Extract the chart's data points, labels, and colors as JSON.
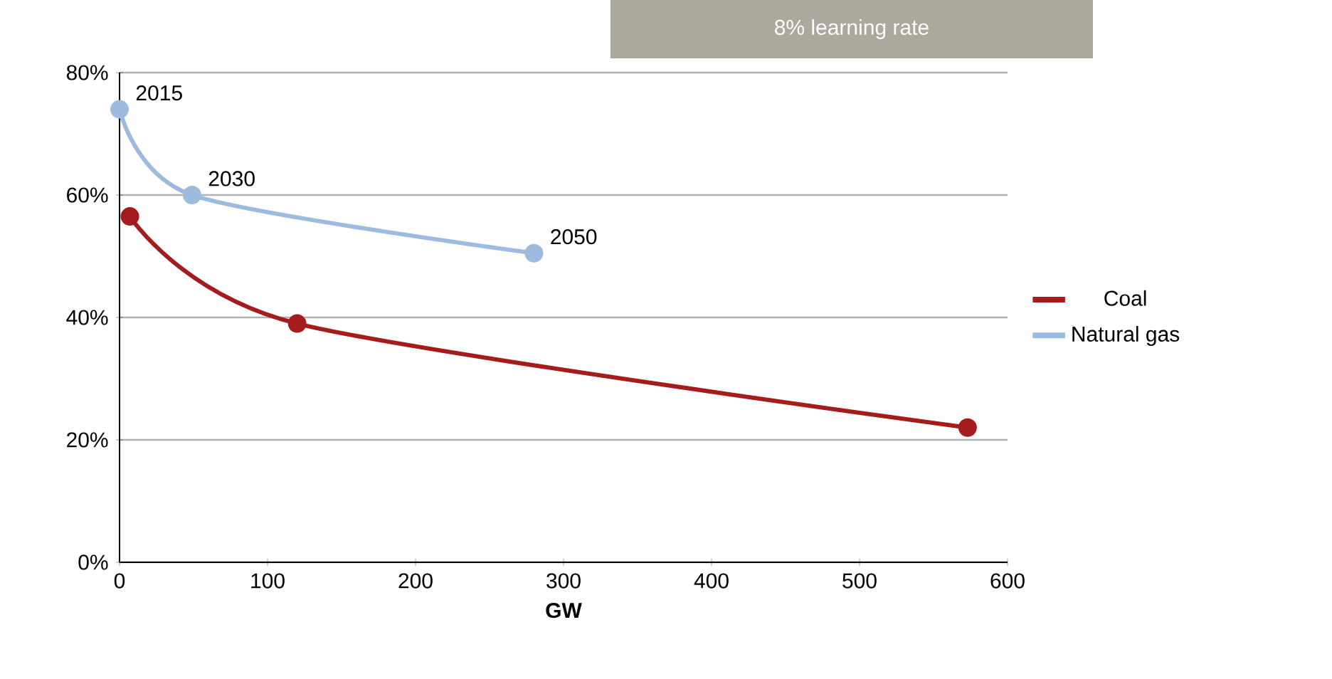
{
  "chart_data": {
    "type": "line",
    "title": "8% learning rate",
    "xlabel": "GW",
    "series": [
      {
        "name": "Coal",
        "color": "#a51c1c",
        "x": [
          7,
          120,
          573
        ],
        "values": [
          56.5,
          39,
          22
        ]
      },
      {
        "name": "Natural gas",
        "color": "#9dbbdf",
        "x": [
          0,
          49,
          280
        ],
        "values": [
          74,
          60,
          50.5
        ]
      }
    ],
    "annotations": [
      {
        "text": "2015",
        "x": 0,
        "y": 74
      },
      {
        "text": "2030",
        "x": 49,
        "y": 60
      },
      {
        "text": "2050",
        "x": 280,
        "y": 50.5
      }
    ],
    "xlim": [
      0,
      600
    ],
    "xticks": [
      0,
      100,
      200,
      300,
      400,
      500,
      600
    ],
    "ylim": [
      0,
      80
    ],
    "yticks": [
      {
        "value": 0,
        "label": "0%"
      },
      {
        "value": 20,
        "label": "20%"
      },
      {
        "value": 40,
        "label": "40%"
      },
      {
        "value": 60,
        "label": "60%"
      },
      {
        "value": 80,
        "label": "80%"
      }
    ],
    "grid": "y",
    "legend": "right",
    "marker": "circle",
    "line_style": "solid"
  }
}
